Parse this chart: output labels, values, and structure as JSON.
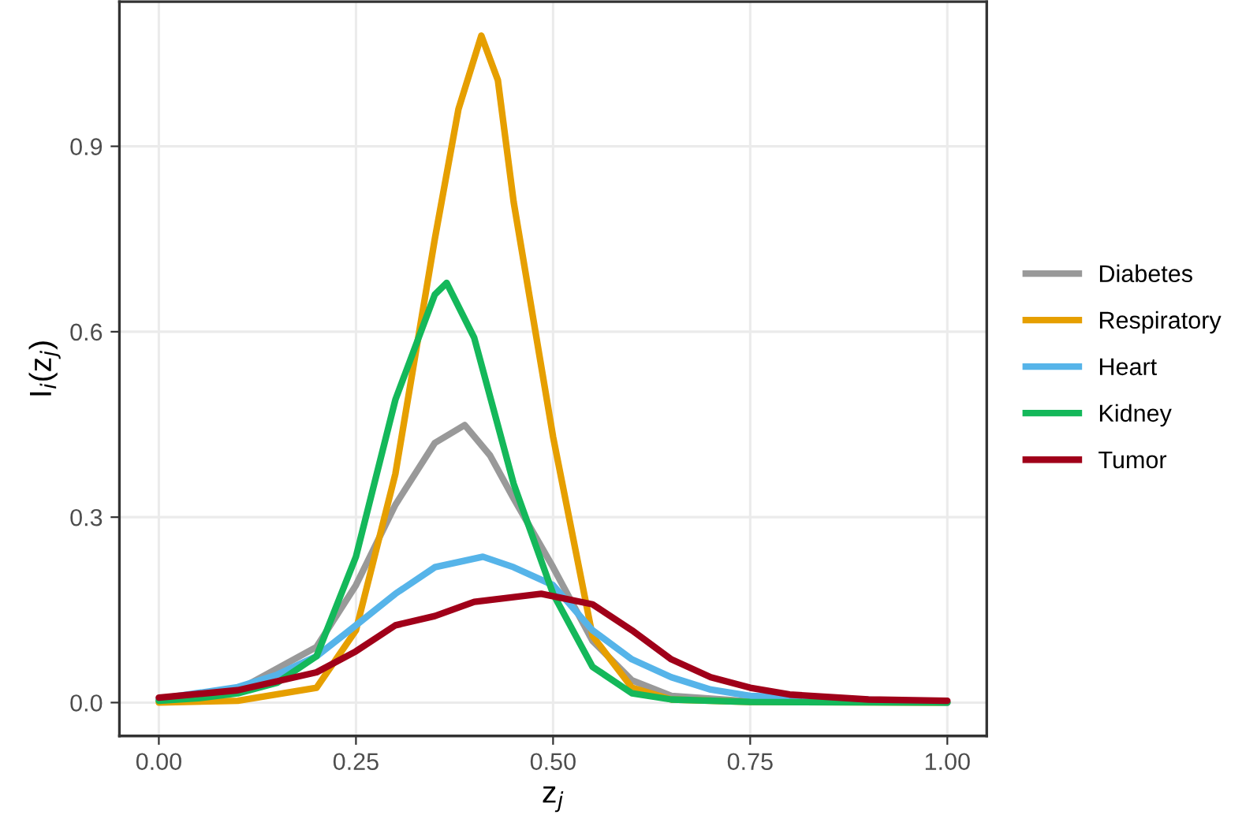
{
  "chart_data": {
    "type": "line",
    "xlabel": "z$_{j}$",
    "ylabel": "I$_{i}$(z$_{j}$)",
    "xlim": [
      -0.05,
      1.05
    ],
    "ylim": [
      -0.054,
      1.134
    ],
    "xticks": [
      {
        "value": 0,
        "label": "0.00"
      },
      {
        "value": 0.25,
        "label": "0.25"
      },
      {
        "value": 0.5,
        "label": "0.50"
      },
      {
        "value": 0.75,
        "label": "0.75"
      },
      {
        "value": 1,
        "label": "1.00"
      }
    ],
    "yticks": [
      {
        "value": 0,
        "label": "0.0"
      },
      {
        "value": 0.3,
        "label": "0.3"
      },
      {
        "value": 0.6,
        "label": "0.6"
      },
      {
        "value": 0.9,
        "label": "0.9"
      }
    ],
    "grid": true,
    "legend": "right",
    "line_style": "solid",
    "marker": "none",
    "series": [
      {
        "name": "Diabetes",
        "color": "#999999",
        "x": [
          0,
          0.1,
          0.2,
          0.25,
          0.3,
          0.35,
          0.388,
          0.42,
          0.45,
          0.5,
          0.55,
          0.6,
          0.65,
          0.75,
          1.0
        ],
        "values": [
          0.003,
          0.02,
          0.09,
          0.19,
          0.32,
          0.42,
          0.449,
          0.4,
          0.33,
          0.219,
          0.1,
          0.036,
          0.011,
          0.002,
          0
        ]
      },
      {
        "name": "Respiratory",
        "color": "#e69f00",
        "x": [
          0,
          0.1,
          0.2,
          0.25,
          0.3,
          0.35,
          0.38,
          0.409,
          0.43,
          0.45,
          0.5,
          0.55,
          0.6,
          0.65,
          0.75,
          1.0
        ],
        "values": [
          0,
          0.003,
          0.024,
          0.117,
          0.37,
          0.75,
          0.96,
          1.079,
          1.007,
          0.81,
          0.43,
          0.108,
          0.024,
          0.005,
          0.001,
          0
        ]
      },
      {
        "name": "Heart",
        "color": "#56b4e9",
        "x": [
          0,
          0.1,
          0.15,
          0.2,
          0.25,
          0.3,
          0.35,
          0.411,
          0.45,
          0.5,
          0.55,
          0.6,
          0.65,
          0.7,
          0.75,
          1.0
        ],
        "values": [
          0.006,
          0.025,
          0.045,
          0.075,
          0.125,
          0.176,
          0.219,
          0.236,
          0.219,
          0.19,
          0.117,
          0.07,
          0.041,
          0.021,
          0.011,
          0
        ]
      },
      {
        "name": "Kidney",
        "color": "#14b85a",
        "x": [
          0,
          0.05,
          0.1,
          0.15,
          0.2,
          0.25,
          0.3,
          0.35,
          0.365,
          0.4,
          0.45,
          0.5,
          0.55,
          0.6,
          0.65,
          0.75,
          1.0
        ],
        "values": [
          0.003,
          0.007,
          0.015,
          0.032,
          0.075,
          0.236,
          0.49,
          0.66,
          0.679,
          0.59,
          0.354,
          0.176,
          0.058,
          0.015,
          0.005,
          0.001,
          0
        ]
      },
      {
        "name": "Tumor",
        "color": "#a00019",
        "x": [
          0,
          0.1,
          0.2,
          0.25,
          0.3,
          0.35,
          0.4,
          0.485,
          0.55,
          0.6,
          0.65,
          0.7,
          0.75,
          0.8,
          0.9,
          1.0
        ],
        "values": [
          0.008,
          0.02,
          0.049,
          0.083,
          0.125,
          0.14,
          0.163,
          0.176,
          0.159,
          0.117,
          0.07,
          0.041,
          0.024,
          0.013,
          0.005,
          0.003
        ]
      }
    ]
  }
}
